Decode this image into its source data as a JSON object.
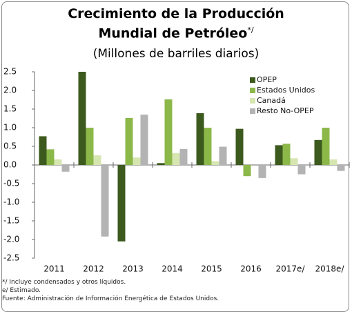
{
  "chart_data": {
    "type": "bar",
    "title": "Crecimiento de la Producción Mundial de Petróleo",
    "title_note": "*/",
    "subtitle": "(Millones de barriles diarios)",
    "categories": [
      "2011",
      "2012",
      "2013",
      "2014",
      "2015",
      "2016",
      "2017e/",
      "2018e/"
    ],
    "series": [
      {
        "name": "OPEP",
        "color": "#3d5a1e",
        "values": [
          0.77,
          2.5,
          -2.05,
          0.05,
          1.39,
          0.97,
          0.53,
          0.67
        ]
      },
      {
        "name": "Estados Unidos",
        "color": "#8cb84a",
        "values": [
          0.42,
          1.0,
          1.26,
          1.76,
          1.0,
          -0.3,
          0.57,
          1.0
        ]
      },
      {
        "name": "Canadá",
        "color": "#d6e6b0",
        "values": [
          0.15,
          0.26,
          0.2,
          0.32,
          0.1,
          0,
          0.18,
          0.15
        ]
      },
      {
        "name": "Resto No-OPEP",
        "color": "#b3b3b3",
        "values": [
          -0.18,
          -1.92,
          1.35,
          0.43,
          0.49,
          -0.35,
          -0.25,
          -0.16
        ]
      }
    ],
    "ylim": [
      -2.5,
      2.5
    ],
    "yticks": [
      2.5,
      {
        "value": 2,
        "label": "2.0"
      },
      1.5,
      {
        "value": 1,
        "label": "1.0"
      },
      0.5,
      {
        "value": 0,
        "label": "0.0"
      },
      -0.5,
      {
        "value": -1,
        "label": "-1.0"
      },
      -1.5,
      {
        "value": -2,
        "label": "-2.0"
      },
      -2.5
    ],
    "legend": "top-right",
    "notes": [
      "*/ Incluye condensados y otros líquidos.",
      "e/ Estimado.",
      "Fuente: Administración de Información Energética de Estados Unidos."
    ]
  }
}
